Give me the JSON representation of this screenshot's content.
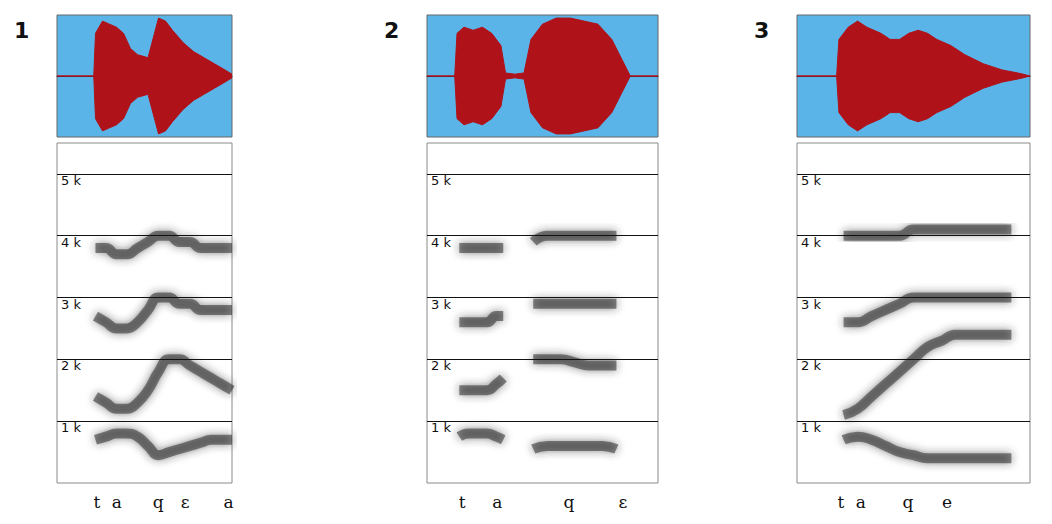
{
  "chart_data": [
    {
      "type": "line",
      "title": "1",
      "xlim": [
        0,
        500
      ],
      "ylim": [
        0,
        5500
      ],
      "yticks": [
        {
          "value": 1000,
          "label": "1 k"
        },
        {
          "value": 2000,
          "label": "2 k"
        },
        {
          "value": 3000,
          "label": "3 k"
        },
        {
          "value": 4000,
          "label": "4 k"
        },
        {
          "value": 5000,
          "label": "5 k"
        }
      ],
      "grid": true,
      "tick_labels": "y",
      "x": [
        110,
        140,
        170,
        200,
        230,
        260,
        290,
        320,
        350,
        380,
        410,
        440,
        470,
        500
      ],
      "series": [
        {
          "color": "#2b2b2b",
          "values": [
            700,
            750,
            800,
            800,
            750,
            600,
            450,
            500,
            550,
            600,
            650,
            700,
            700,
            700
          ]
        },
        {
          "color": "#2b2b2b",
          "values": [
            1400,
            1300,
            1200,
            1200,
            1300,
            1500,
            1800,
            2000,
            2000,
            1900,
            1800,
            1700,
            1600,
            1500
          ]
        },
        {
          "color": "#2b2b2b",
          "values": [
            2700,
            2600,
            2500,
            2500,
            2600,
            2800,
            3000,
            3000,
            2900,
            2900,
            2800,
            2800,
            2800,
            2800
          ]
        },
        {
          "color": "#2b2b2b",
          "values": [
            3800,
            3800,
            3700,
            3700,
            3800,
            3900,
            4000,
            4000,
            3900,
            3900,
            3800,
            3800,
            3800,
            3800
          ]
        }
      ],
      "waveform": {
        "color": "#b0121a",
        "ylim": [
          -1,
          1
        ],
        "x": [
          0,
          105,
          110,
          130,
          150,
          170,
          190,
          210,
          230,
          260,
          290,
          310,
          330,
          360,
          390,
          420,
          450,
          480,
          500
        ],
        "upper": [
          0,
          0,
          0.7,
          0.9,
          0.85,
          0.8,
          0.7,
          0.45,
          0.35,
          0.3,
          0.95,
          0.9,
          0.75,
          0.55,
          0.4,
          0.3,
          0.2,
          0.1,
          0.03
        ],
        "lower": [
          0,
          0,
          -0.7,
          -0.9,
          -0.85,
          -0.8,
          -0.7,
          -0.45,
          -0.35,
          -0.3,
          -0.95,
          -0.9,
          -0.75,
          -0.55,
          -0.4,
          -0.3,
          -0.2,
          -0.1,
          -0.03
        ]
      },
      "segments": {
        "labels": [
          "t",
          "a",
          "q",
          "ɛ",
          "a"
        ],
        "x": [
          114,
          171,
          289,
          366,
          490
        ]
      }
    },
    {
      "type": "line",
      "title": "2",
      "xlim": [
        0,
        500
      ],
      "ylim": [
        0,
        5500
      ],
      "yticks": [
        {
          "value": 1000,
          "label": "1 k"
        },
        {
          "value": 2000,
          "label": "2 k"
        },
        {
          "value": 3000,
          "label": "3 k"
        },
        {
          "value": 4000,
          "label": "4 k"
        },
        {
          "value": 5000,
          "label": "5 k"
        }
      ],
      "grid": true,
      "tick_labels": "y",
      "x": [
        70,
        90,
        110,
        130,
        150,
        165,
        190,
        230,
        260,
        290,
        320,
        350,
        380,
        410
      ],
      "series": [
        {
          "color": "#2b2b2b",
          "values": [
            750,
            800,
            800,
            800,
            750,
            700,
            null,
            550,
            600,
            600,
            600,
            600,
            600,
            550
          ]
        },
        {
          "color": "#2b2b2b",
          "values": [
            1500,
            1500,
            1500,
            1500,
            1600,
            1700,
            null,
            2000,
            2000,
            2000,
            1950,
            1900,
            1900,
            1900
          ]
        },
        {
          "color": "#2b2b2b",
          "values": [
            2600,
            2600,
            2600,
            2600,
            2700,
            2700,
            null,
            2900,
            2900,
            2900,
            2900,
            2900,
            2900,
            2900
          ]
        },
        {
          "color": "#2b2b2b",
          "values": [
            3800,
            3800,
            3800,
            3800,
            3800,
            3800,
            null,
            3900,
            4000,
            4000,
            4000,
            4000,
            4000,
            4000
          ]
        }
      ],
      "waveform": {
        "color": "#b0121a",
        "ylim": [
          -1,
          1
        ],
        "x": [
          0,
          60,
          65,
          80,
          100,
          120,
          140,
          160,
          170,
          190,
          210,
          225,
          250,
          280,
          310,
          340,
          370,
          400,
          420,
          440,
          500
        ],
        "upper": [
          0,
          0,
          0.7,
          0.8,
          0.75,
          0.8,
          0.7,
          0.5,
          0.05,
          0.03,
          0.05,
          0.6,
          0.85,
          0.95,
          0.95,
          0.9,
          0.85,
          0.6,
          0.3,
          0,
          0
        ],
        "lower": [
          0,
          0,
          -0.7,
          -0.8,
          -0.75,
          -0.8,
          -0.7,
          -0.5,
          -0.05,
          -0.03,
          -0.05,
          -0.6,
          -0.85,
          -0.95,
          -0.95,
          -0.9,
          -0.85,
          -0.6,
          -0.3,
          0,
          0
        ]
      },
      "segments": {
        "labels": [
          "t",
          "a",
          "q",
          "ɛ"
        ],
        "x": [
          76,
          152,
          307,
          424
        ]
      }
    },
    {
      "type": "line",
      "title": "3",
      "xlim": [
        0,
        500
      ],
      "ylim": [
        0,
        5500
      ],
      "yticks": [
        {
          "value": 1000,
          "label": "1 k"
        },
        {
          "value": 2000,
          "label": "2 k"
        },
        {
          "value": 3000,
          "label": "3 k"
        },
        {
          "value": 4000,
          "label": "4 k"
        },
        {
          "value": 5000,
          "label": "5 k"
        }
      ],
      "grid": true,
      "tick_labels": "y",
      "x": [
        100,
        130,
        160,
        190,
        220,
        250,
        280,
        310,
        340,
        370,
        400,
        430,
        460
      ],
      "series": [
        {
          "color": "#2b2b2b",
          "values": [
            700,
            750,
            700,
            600,
            500,
            450,
            400,
            400,
            400,
            400,
            400,
            400,
            400
          ]
        },
        {
          "color": "#2b2b2b",
          "values": [
            1100,
            1200,
            1400,
            1600,
            1800,
            2000,
            2200,
            2300,
            2400,
            2400,
            2400,
            2400,
            2400
          ]
        },
        {
          "color": "#2b2b2b",
          "values": [
            2600,
            2600,
            2700,
            2800,
            2900,
            3000,
            3000,
            3000,
            3000,
            3000,
            3000,
            3000,
            3000
          ]
        },
        {
          "color": "#2b2b2b",
          "values": [
            4000,
            4000,
            4000,
            4000,
            4000,
            4100,
            4100,
            4100,
            4100,
            4100,
            4100,
            4100,
            4100
          ]
        }
      ],
      "waveform": {
        "color": "#b0121a",
        "ylim": [
          -1,
          1
        ],
        "x": [
          0,
          85,
          90,
          110,
          130,
          150,
          180,
          200,
          220,
          240,
          260,
          280,
          300,
          330,
          360,
          400,
          440,
          480,
          500
        ],
        "upper": [
          0,
          0,
          0.6,
          0.8,
          0.9,
          0.8,
          0.7,
          0.6,
          0.6,
          0.7,
          0.75,
          0.7,
          0.6,
          0.5,
          0.35,
          0.2,
          0.1,
          0.04,
          0
        ],
        "lower": [
          0,
          0,
          -0.6,
          -0.8,
          -0.9,
          -0.8,
          -0.7,
          -0.6,
          -0.6,
          -0.7,
          -0.75,
          -0.7,
          -0.6,
          -0.5,
          -0.35,
          -0.2,
          -0.1,
          -0.04,
          0
        ]
      },
      "segments": {
        "labels": [
          "t",
          "a",
          "q",
          "e"
        ],
        "x": [
          94,
          137,
          238,
          322
        ]
      }
    }
  ]
}
